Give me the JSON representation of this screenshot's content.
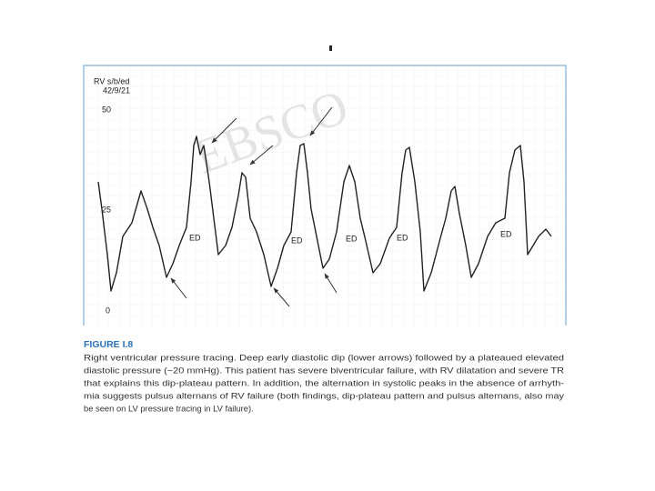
{
  "figure": {
    "watermark": "EBSCO",
    "trace_label": "RV s/b/ed",
    "date": "42/9/21",
    "y_labels": [
      "50",
      "25",
      "0"
    ],
    "ed_labels": [
      "ED",
      "ED",
      "ED",
      "ED",
      "ED"
    ]
  },
  "caption": {
    "title": "FIGURE I.8",
    "lines": [
      "Right ventricular pressure tracing. Deep early diastolic dip (lower arrows) followed by a plateaued elevated",
      "diastolic pressure (~20 mmHg). This patient has severe biventricular failure, with RV dilatation and severe TR",
      "that explains this dip-plateau pattern. In addition, the alternation in systolic peaks in the absence of arrhyth-",
      "mia suggests pulsus alternans of RV failure (both findings, dip-plateau pattern and pulsus alternans, also may",
      "be seen on LV pressure tracing in LV failure)."
    ]
  }
}
